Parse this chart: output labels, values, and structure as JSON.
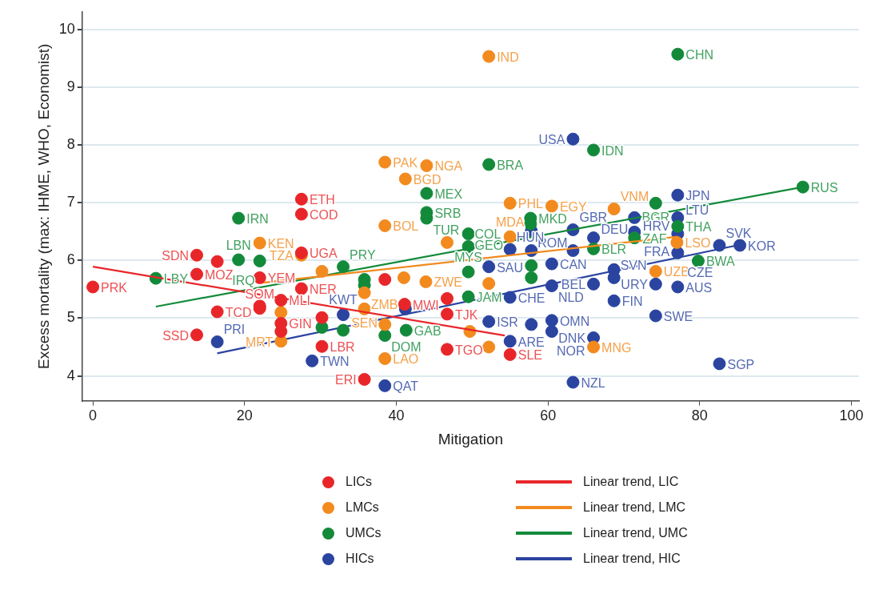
{
  "chart_data": {
    "type": "scatter",
    "xlabel": "Mitigation",
    "ylabel": "Excess mortality (max: IHME, WHO, Economist)",
    "xlim": [
      -1.4,
      101
    ],
    "ylim": [
      3.57,
      10.3
    ],
    "xticks": [
      0,
      20,
      40,
      60,
      80,
      100
    ],
    "yticks": [
      4,
      5,
      6,
      7,
      8,
      9,
      10
    ],
    "grid": "y",
    "legend": "bottom",
    "series": [
      {
        "name": "LICs",
        "marker": "circle",
        "color": "#e8262a",
        "x": [
          0,
          13.7,
          13.7,
          13.7,
          16.4,
          16.4,
          27.5,
          27.5,
          27.5,
          22.0,
          27.5,
          24.8,
          22.0,
          22.0,
          24.8,
          24.8,
          30.2,
          30.2,
          35.8,
          38.5,
          41.1,
          46.7,
          46.7,
          46.7,
          55.0
        ],
        "values": [
          5.54,
          4.71,
          6.09,
          5.76,
          5.11,
          5.98,
          7.06,
          6.8,
          6.13,
          5.7,
          5.51,
          5.31,
          5.17,
          5.21,
          4.91,
          4.77,
          4.51,
          5.01,
          3.94,
          5.67,
          5.24,
          5.34,
          5.07,
          4.46,
          4.37
        ],
        "value_labels": [
          "PRK",
          "SSD",
          "SDN",
          "MOZ",
          "TCD",
          null,
          "ETH",
          "COD",
          "UGA",
          "YEM",
          "NER",
          "MLI",
          "SOM",
          null,
          "GIN",
          null,
          "LBR",
          null,
          "ERI",
          null,
          "MWI",
          null,
          "TJK",
          "TGO",
          "SLE"
        ]
      },
      {
        "name": "Linear trend, LIC",
        "type": "line",
        "color": "#e8262a",
        "x": [
          0,
          54.3
        ],
        "values": [
          5.89,
          4.7
        ]
      },
      {
        "name": "LMCs",
        "marker": "circle",
        "color": "#f28a1e",
        "x": [
          52.2,
          38.5,
          44.0,
          41.2,
          55.0,
          60.5,
          68.7,
          38.5,
          22.0,
          27.5,
          30.2,
          46.7,
          55.0,
          35.8,
          41.0,
          43.9,
          35.8,
          38.5,
          38.5,
          49.7,
          52.2,
          24.8,
          24.8,
          74.2,
          66.0,
          77.0,
          52.2
        ],
        "values": [
          9.53,
          7.7,
          7.64,
          7.41,
          6.99,
          6.94,
          6.89,
          6.6,
          6.3,
          6.09,
          5.81,
          6.31,
          6.41,
          5.44,
          5.7,
          5.63,
          5.16,
          4.89,
          4.3,
          4.77,
          4.5,
          4.6,
          5.1,
          5.81,
          4.5,
          6.31,
          5.6
        ],
        "value_labels": [
          "IND",
          "PAK",
          "NGA",
          "BGD",
          "PHL",
          "EGY",
          "VNM",
          "BOL",
          "KEN",
          "TZA",
          null,
          null,
          "MDA",
          "ZMB",
          null,
          "ZWE",
          "SEN",
          null,
          "LAO",
          null,
          null,
          "MRT",
          null,
          "UZB",
          "MNG",
          "LSO",
          null
        ]
      },
      {
        "name": "Linear trend, LMC",
        "type": "line",
        "color": "#f28a1e",
        "x": [
          22.2,
          77.1
        ],
        "values": [
          5.61,
          6.41
        ]
      },
      {
        "name": "UMCs",
        "marker": "circle",
        "color": "#138a3a",
        "x": [
          77.1,
          66.0,
          52.2,
          44.0,
          44.0,
          44.0,
          19.2,
          74.2,
          93.6,
          8.3,
          19.2,
          22.0,
          33.0,
          57.7,
          57.7,
          49.5,
          49.5,
          49.5,
          49.5,
          35.8,
          35.8,
          30.2,
          33.0,
          38.5,
          41.3,
          77.1,
          71.4,
          79.8,
          57.8,
          57.8,
          66.0
        ],
        "values": [
          9.57,
          7.91,
          7.66,
          7.16,
          6.83,
          6.73,
          6.73,
          6.99,
          7.27,
          5.69,
          6.01,
          5.99,
          5.89,
          6.73,
          6.63,
          6.46,
          6.24,
          5.8,
          5.37,
          5.67,
          5.57,
          4.84,
          4.79,
          4.7,
          4.79,
          6.59,
          6.39,
          5.99,
          5.7,
          5.91,
          6.2
        ],
        "value_labels": [
          "CHN",
          "IDN",
          "BRA",
          "MEX",
          "SRB",
          "TUR",
          "IRN",
          "BGR",
          "RUS",
          "LBY",
          "LBN",
          "IRQ",
          "PRY",
          "MKD",
          null,
          "GEO",
          "COL",
          "MYS",
          "JAM",
          null,
          null,
          null,
          null,
          "DOM",
          "GAB",
          "THA",
          "ZAF",
          "BWA",
          null,
          null,
          "BLR"
        ]
      },
      {
        "name": "Linear trend, UMC",
        "type": "line",
        "color": "#138a3a",
        "x": [
          8.3,
          93.6
        ],
        "values": [
          5.2,
          7.27
        ]
      },
      {
        "name": "HICs",
        "marker": "circle",
        "color": "#2a44a0",
        "x": [
          63.3,
          77.1,
          77.1,
          71.4,
          71.4,
          77.1,
          77.1,
          82.6,
          85.3,
          74.2,
          77.1,
          74.2,
          82.6,
          68.7,
          68.7,
          68.7,
          66.0,
          66.0,
          63.3,
          38.5,
          28.9,
          16.4,
          55.0,
          52.2,
          60.5,
          60.5,
          57.8,
          55.0,
          60.5,
          33.0,
          41.2,
          52.2,
          60.5,
          57.8,
          55.0,
          57.8,
          63.3,
          63.3,
          66.0
        ],
        "values": [
          8.1,
          7.13,
          6.74,
          6.74,
          6.49,
          6.46,
          6.13,
          6.26,
          6.26,
          5.59,
          5.54,
          5.04,
          4.21,
          5.3,
          5.84,
          5.7,
          5.59,
          4.66,
          3.89,
          3.83,
          4.26,
          4.59,
          4.6,
          4.94,
          4.96,
          4.77,
          4.89,
          5.36,
          5.56,
          5.06,
          5.16,
          5.89,
          5.94,
          6.51,
          6.19,
          6.17,
          6.53,
          6.17,
          6.39
        ],
        "value_labels": [
          "USA",
          "JPN",
          "LTU",
          "DEU",
          "FRA",
          "HRV",
          "CZE",
          "SVK",
          "KOR",
          "URY",
          "AUS",
          "SWE",
          "SGP",
          "FIN",
          null,
          "SVN",
          "BEL",
          "DNK",
          "NZL",
          "QAT",
          "TWN",
          "PRI",
          "ARE",
          "ISR",
          "OMN",
          "NOR",
          null,
          "CHE",
          "NLD",
          "KWT",
          null,
          "SAU",
          "CAN",
          "ROM",
          "HUN",
          null,
          "GBR",
          null,
          null
        ]
      },
      {
        "name": "Linear trend, HIC",
        "type": "line",
        "color": "#2a44a0",
        "x": [
          16.4,
          85.3
        ],
        "values": [
          4.39,
          6.27
        ]
      }
    ]
  }
}
